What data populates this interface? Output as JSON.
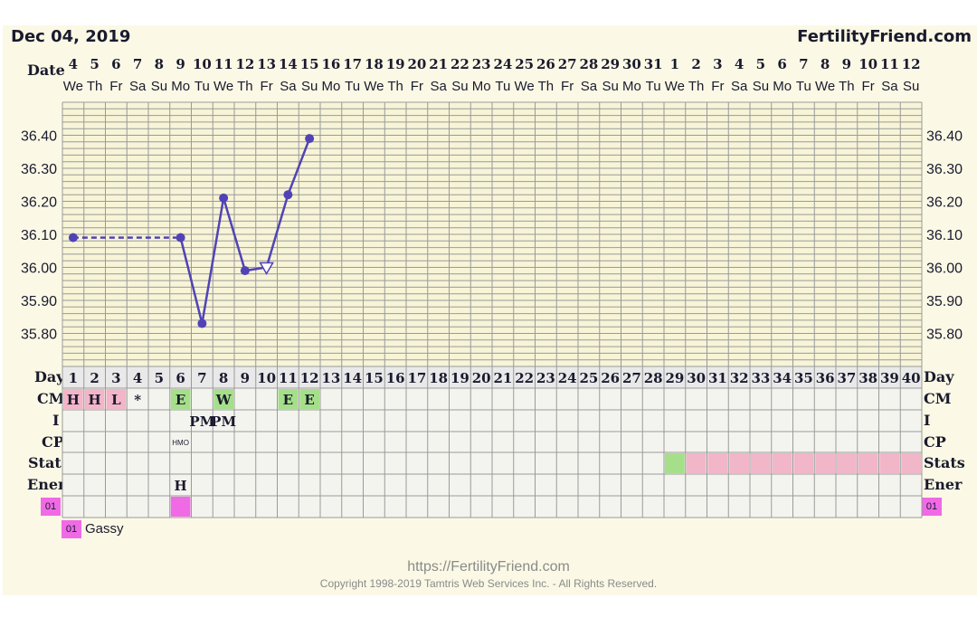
{
  "header": {
    "date": "Dec 04, 2019",
    "site": "FertilityFriend.com"
  },
  "labels": {
    "date": "Date",
    "day": "Day",
    "cm": "CM",
    "i": "I",
    "cp": "CP",
    "stats": "Stats",
    "ener": "Ener",
    "tag": "01"
  },
  "chart_data": {
    "type": "line",
    "y_ticks": [
      "35.80",
      "35.90",
      "36.00",
      "36.10",
      "36.20",
      "36.30",
      "36.40"
    ],
    "ylim": [
      35.7,
      36.5
    ],
    "dates": [
      "4",
      "5",
      "6",
      "7",
      "8",
      "9",
      "10",
      "11",
      "12",
      "13",
      "14",
      "15",
      "16",
      "17",
      "18",
      "19",
      "20",
      "21",
      "22",
      "23",
      "24",
      "25",
      "26",
      "27",
      "28",
      "29",
      "30",
      "31",
      "1",
      "2",
      "3",
      "4",
      "5",
      "6",
      "7",
      "8",
      "9",
      "10",
      "11",
      "12"
    ],
    "weekdays": [
      "We",
      "Th",
      "Fr",
      "Sa",
      "Su",
      "Mo",
      "Tu",
      "We",
      "Th",
      "Fr",
      "Sa",
      "Su",
      "Mo",
      "Tu",
      "We",
      "Th",
      "Fr",
      "Sa",
      "Su",
      "Mo",
      "Tu",
      "We",
      "Th",
      "Fr",
      "Sa",
      "Su",
      "Mo",
      "Tu",
      "We",
      "Th",
      "Fr",
      "Sa",
      "Su",
      "Mo",
      "Tu",
      "We",
      "Th",
      "Fr",
      "Sa",
      "Su"
    ],
    "cycle_days": [
      1,
      2,
      3,
      4,
      5,
      6,
      7,
      8,
      9,
      10,
      11,
      12,
      13,
      14,
      15,
      16,
      17,
      18,
      19,
      20,
      21,
      22,
      23,
      24,
      25,
      26,
      27,
      28,
      29,
      30,
      31,
      32,
      33,
      34,
      35,
      36,
      37,
      38,
      39,
      40
    ],
    "temps": [
      {
        "day": 1,
        "value": 36.09
      },
      {
        "day": 6,
        "value": 36.09
      },
      {
        "day": 7,
        "value": 35.83
      },
      {
        "day": 8,
        "value": 36.21
      },
      {
        "day": 9,
        "value": 35.99
      },
      {
        "day": 10,
        "value": 36.0,
        "open": true
      },
      {
        "day": 11,
        "value": 36.22
      },
      {
        "day": 12,
        "value": 36.39
      }
    ],
    "dashed_segment": [
      1,
      6
    ],
    "cm": [
      {
        "day": 1,
        "code": "H",
        "color": "#f1b6c8"
      },
      {
        "day": 2,
        "code": "H",
        "color": "#f1b6c8"
      },
      {
        "day": 3,
        "code": "L",
        "color": "#f1b6c8"
      },
      {
        "day": 4,
        "code": "*",
        "color": ""
      },
      {
        "day": 6,
        "code": "E",
        "color": "#a6df8a"
      },
      {
        "day": 8,
        "code": "W",
        "color": "#a6df8a"
      },
      {
        "day": 11,
        "code": "E",
        "color": "#a6df8a"
      },
      {
        "day": 12,
        "code": "E",
        "color": "#a6df8a"
      }
    ],
    "intercourse": [
      {
        "day": 7,
        "code": "PM"
      },
      {
        "day": 8,
        "code": "PM"
      }
    ],
    "cp": [
      {
        "day": 6,
        "code": "HMO"
      }
    ],
    "stats": {
      "green_day": 29,
      "pink_from": 30,
      "pink_to": 40,
      "green": "#a6df8a",
      "pink": "#f1b6c8"
    },
    "energy": [
      {
        "day": 6,
        "code": "H"
      }
    ],
    "symptoms": [
      {
        "day": 6,
        "code": "01",
        "color": "#f06ae6"
      }
    ],
    "line_color": "#5143b5",
    "grid_color": "#9a9a9a"
  },
  "legend": {
    "code": "01",
    "text": "Gassy"
  },
  "footer": {
    "url": "https://FertilityFriend.com",
    "copyright": "Copyright 1998-2019 Tamtris Web Services Inc. - All Rights Reserved."
  }
}
